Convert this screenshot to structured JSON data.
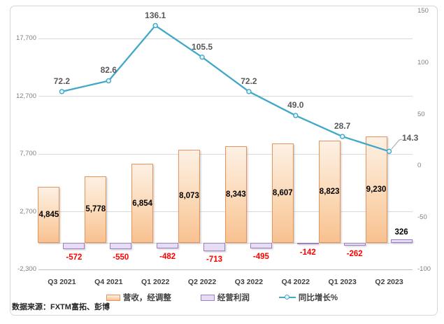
{
  "source_note": "数据来源：FXTM富拓、彭博",
  "colors": {
    "revenue_border": "#e8935a",
    "revenue_fill_light": "#fdf0e4",
    "revenue_fill_dark": "#f8c190",
    "profit_border": "#9c7fc4",
    "profit_fill": "#e6dcf3",
    "growth_line": "#41a8c8",
    "marker_fill": "#e7f5fa",
    "gridline": "#d9d9d9",
    "axis_line": "#bfbfbf",
    "axis_label": "#7f7f7f",
    "bar_label": "#000000",
    "negative_label": "#ff0000",
    "line_label": "#595959",
    "leader_line": "#a6a6a6"
  },
  "chart_data": {
    "type": "combo-bar-line",
    "categories": [
      "Q3 2021",
      "Q4 2021",
      "Q1 2022",
      "Q2 2022",
      "Q3 2022",
      "Q4 2022",
      "Q1 2023",
      "Q2 2023"
    ],
    "series": [
      {
        "name": "营收，经调整",
        "type": "bar",
        "axis": "primary",
        "values": [
          4845,
          5778,
          6854,
          8073,
          8343,
          8607,
          8823,
          9230
        ],
        "labels": [
          "4,845",
          "5,778",
          "6,854",
          "8,073",
          "8,343",
          "8,607",
          "8,823",
          "9,230"
        ]
      },
      {
        "name": "经营利润",
        "type": "bar",
        "axis": "primary",
        "values": [
          -572,
          -550,
          -482,
          -713,
          -495,
          -142,
          -262,
          326
        ],
        "labels": [
          "-572",
          "-550",
          "-482",
          "-713",
          "-495",
          "-142",
          "-262",
          "326"
        ]
      },
      {
        "name": "同比增长%",
        "type": "line",
        "axis": "secondary",
        "values": [
          72.2,
          82.6,
          136.1,
          105.5,
          72.2,
          49.0,
          28.7,
          14.3
        ],
        "labels": [
          "72.2",
          "82.6",
          "136.1",
          "105.5",
          "72.2",
          "49.0",
          "28.7",
          "14.3"
        ]
      }
    ],
    "primary_axis": {
      "ticks": [
        "17,700",
        "12,700",
        "7,700",
        "2,700",
        "-2,300"
      ],
      "tick_values": [
        17700,
        12700,
        7700,
        2700,
        -2300
      ],
      "min": -2300,
      "max": 20064
    },
    "secondary_axis": {
      "ticks": [
        "150",
        "100",
        "50",
        "0",
        "-50",
        "-100"
      ],
      "tick_values": [
        150,
        100,
        50,
        0,
        -50,
        -100
      ],
      "min": -100,
      "max": 150
    },
    "grid": true,
    "legend_position": "bottom"
  }
}
